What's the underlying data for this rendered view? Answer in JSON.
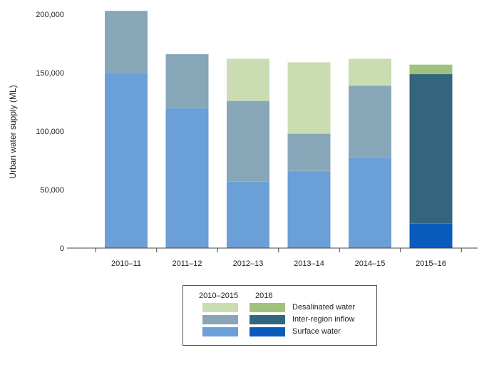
{
  "chart_data": {
    "type": "bar",
    "stacked": true,
    "title": "",
    "xlabel": "",
    "ylabel": "Urban water supply (ML)",
    "ylim": [
      0,
      200000
    ],
    "yticks": [
      0,
      50000,
      100000,
      150000,
      200000
    ],
    "ytick_labels": [
      "0",
      "50,000",
      "100,000",
      "150,000",
      "200,000"
    ],
    "categories": [
      "2010–11",
      "2011–12",
      "2012–13",
      "2013–14",
      "2014–15",
      "2015–16"
    ],
    "series": [
      {
        "name": "Surface water",
        "values": [
          150000,
          120000,
          57000,
          66000,
          78000,
          21000
        ],
        "colors": [
          "#6a9fd8",
          "#6a9fd8",
          "#6a9fd8",
          "#6a9fd8",
          "#6a9fd8",
          "#0b5bbd"
        ]
      },
      {
        "name": "Inter-region inflow",
        "values": [
          53000,
          46000,
          69000,
          32000,
          61000,
          128000
        ],
        "colors": [
          "#87a6b8",
          "#87a6b8",
          "#87a6b8",
          "#87a6b8",
          "#87a6b8",
          "#33657d"
        ]
      },
      {
        "name": "Desalinated water",
        "values": [
          0,
          0,
          36000,
          61000,
          23000,
          8000
        ],
        "colors": [
          "#c9dcb2",
          "#c9dcb2",
          "#c9dcb2",
          "#c9dcb2",
          "#c9dcb2",
          "#a1c27d"
        ]
      }
    ],
    "grid": false,
    "legend": {
      "placement": "bottom",
      "headers": [
        "2010–2015",
        "2016"
      ],
      "entries": [
        {
          "label": "Desalinated water",
          "color_2010_2015": "#c9dcb2",
          "color_2016": "#a1c27d"
        },
        {
          "label": "Inter-region inflow",
          "color_2010_2015": "#87a6b8",
          "color_2016": "#33657d"
        },
        {
          "label": "Surface water",
          "color_2010_2015": "#6a9fd8",
          "color_2016": "#0b5bbd"
        }
      ]
    }
  }
}
